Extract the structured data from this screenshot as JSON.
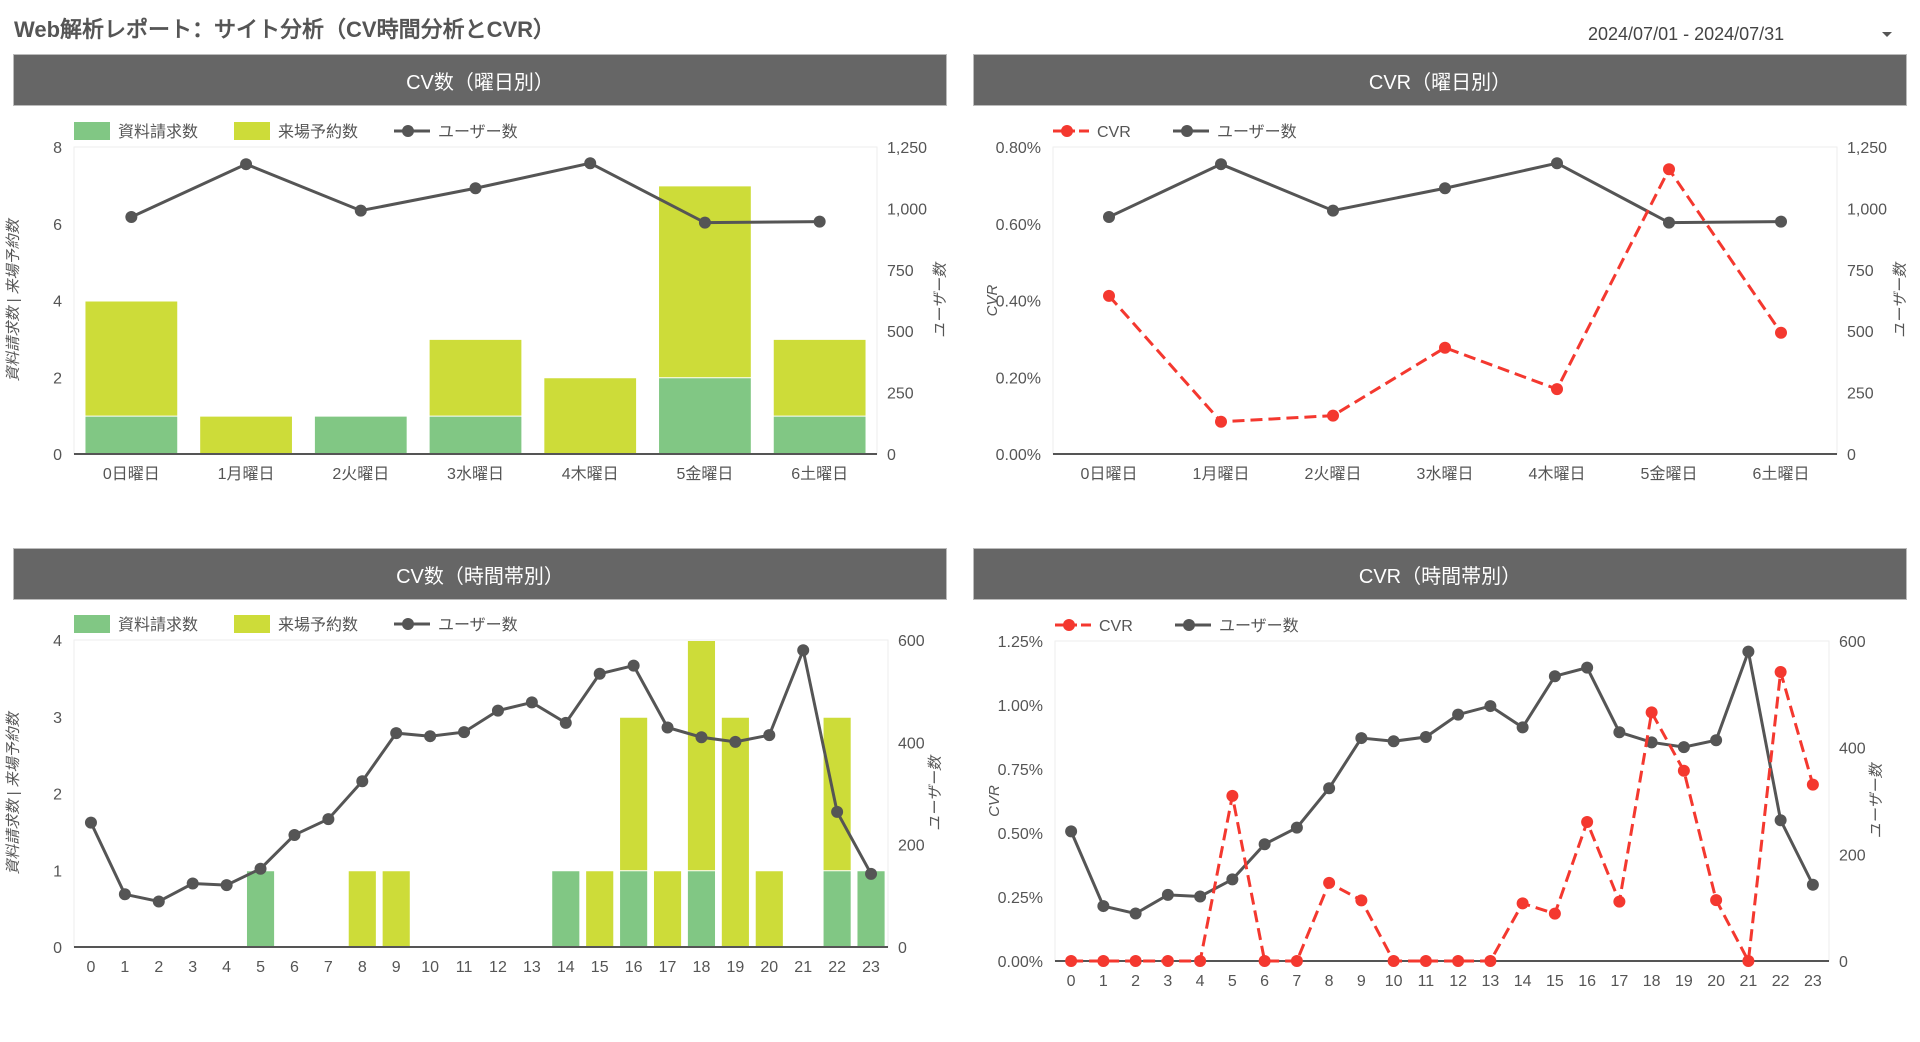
{
  "page": {
    "title": "Web解析レポート：サイト分析（CV時間分析とCVR）",
    "date_range": "2024/07/01 - 2024/07/31"
  },
  "panels": [
    {
      "id": "cv-weekday",
      "header": "CV数（曜日別）"
    },
    {
      "id": "cvr-weekday",
      "header": "CVR（曜日別）"
    },
    {
      "id": "cv-hour",
      "header": "CV数（時間帯別）"
    },
    {
      "id": "cvr-hour",
      "header": "CVR（時間帯別）"
    }
  ],
  "colors": {
    "shiryo": "#81c784",
    "raijo": "#cddc39",
    "users": "#555555",
    "cvr": "#f4382f",
    "header_bg": "#666666"
  },
  "chart_data": [
    {
      "id": "cv-weekday",
      "type": "bar",
      "stacked": true,
      "title": "CV数（曜日別）",
      "categories": [
        "0日曜日",
        "1月曜日",
        "2火曜日",
        "3水曜日",
        "4木曜日",
        "5金曜日",
        "6土曜日"
      ],
      "series": [
        {
          "name": "資料請求数",
          "type": "bar",
          "axis": "left",
          "values": [
            1,
            0,
            1,
            1,
            0,
            2,
            1
          ]
        },
        {
          "name": "来場予約数",
          "type": "bar",
          "axis": "left",
          "values": [
            3,
            1,
            0,
            2,
            2,
            5,
            2
          ]
        },
        {
          "name": "ユーザー数",
          "type": "line",
          "axis": "right",
          "values": [
            965,
            1180,
            991,
            1082,
            1184,
            942,
            946
          ]
        }
      ],
      "ylabel": "資料請求数 | 来場予約数",
      "y2label": "ユーザー数",
      "ylim": [
        0,
        8
      ],
      "yticks": [
        "0",
        "2",
        "4",
        "6",
        "8"
      ],
      "y2lim": [
        0,
        1250
      ],
      "y2ticks": [
        "0",
        "250",
        "500",
        "750",
        "1,000",
        "1,250"
      ],
      "legend": [
        "資料請求数",
        "来場予約数",
        "ユーザー数"
      ]
    },
    {
      "id": "cvr-weekday",
      "type": "line",
      "title": "CVR（曜日別）",
      "categories": [
        "0日曜日",
        "1月曜日",
        "2火曜日",
        "3水曜日",
        "4木曜日",
        "5金曜日",
        "6土曜日"
      ],
      "series": [
        {
          "name": "CVR",
          "type": "line",
          "dashed": true,
          "axis": "left",
          "values": [
            0.412,
            0.084,
            0.1,
            0.277,
            0.169,
            0.742,
            0.316
          ]
        },
        {
          "name": "ユーザー数",
          "type": "line",
          "axis": "right",
          "values": [
            965,
            1180,
            991,
            1082,
            1184,
            942,
            946
          ]
        }
      ],
      "ylabel": "CVR",
      "y2label": "ユーザー数",
      "ylim": [
        0,
        0.8
      ],
      "yticks": [
        "0.00%",
        "0.20%",
        "0.40%",
        "0.60%",
        "0.80%"
      ],
      "y2lim": [
        0,
        1250
      ],
      "y2ticks": [
        "0",
        "250",
        "500",
        "750",
        "1,000",
        "1,250"
      ],
      "legend": [
        "CVR",
        "ユーザー数"
      ]
    },
    {
      "id": "cv-hour",
      "type": "bar",
      "stacked": true,
      "title": "CV数（時間帯別）",
      "categories": [
        "0",
        "1",
        "2",
        "3",
        "4",
        "5",
        "6",
        "7",
        "8",
        "9",
        "10",
        "11",
        "12",
        "13",
        "14",
        "15",
        "16",
        "17",
        "18",
        "19",
        "20",
        "21",
        "22",
        "23"
      ],
      "series": [
        {
          "name": "資料請求数",
          "type": "bar",
          "axis": "left",
          "values": [
            0,
            0,
            0,
            0,
            0,
            1,
            0,
            0,
            0,
            0,
            0,
            0,
            0,
            0,
            1,
            0,
            1,
            0,
            1,
            0,
            0,
            0,
            1,
            1
          ]
        },
        {
          "name": "来場予約数",
          "type": "bar",
          "axis": "left",
          "values": [
            0,
            0,
            0,
            0,
            0,
            0,
            0,
            0,
            1,
            1,
            0,
            0,
            0,
            0,
            0,
            1,
            2,
            1,
            3,
            3,
            1,
            0,
            2,
            0
          ]
        },
        {
          "name": "ユーザー数",
          "type": "line",
          "axis": "right",
          "values": [
            243,
            103,
            89,
            124,
            121,
            153,
            219,
            250,
            324,
            418,
            412,
            420,
            462,
            478,
            438,
            534,
            550,
            429,
            410,
            401,
            414,
            580,
            264,
            143
          ]
        }
      ],
      "ylabel": "資料請求数 | 来場予約数",
      "y2label": "ユーザー数",
      "ylim": [
        0,
        4
      ],
      "yticks": [
        "0",
        "1",
        "2",
        "3",
        "4"
      ],
      "y2lim": [
        0,
        600
      ],
      "y2ticks": [
        "0",
        "200",
        "400",
        "600"
      ],
      "legend": [
        "資料請求数",
        "来場予約数",
        "ユーザー数"
      ]
    },
    {
      "id": "cvr-hour",
      "type": "line",
      "title": "CVR（時間帯別）",
      "categories": [
        "0",
        "1",
        "2",
        "3",
        "4",
        "5",
        "6",
        "7",
        "8",
        "9",
        "10",
        "11",
        "12",
        "13",
        "14",
        "15",
        "16",
        "17",
        "18",
        "19",
        "20",
        "21",
        "22",
        "23"
      ],
      "series": [
        {
          "name": "CVR",
          "type": "line",
          "dashed": true,
          "axis": "left",
          "values": [
            0,
            0,
            0,
            0,
            0,
            0.645,
            0,
            0,
            0.305,
            0.237,
            0,
            0,
            0,
            0,
            0.225,
            0.185,
            0.543,
            0.232,
            0.971,
            0.743,
            0.238,
            0,
            1.129,
            0.689
          ]
        },
        {
          "name": "ユーザー数",
          "type": "line",
          "axis": "right",
          "values": [
            243,
            103,
            89,
            124,
            121,
            153,
            219,
            250,
            324,
            418,
            412,
            420,
            462,
            478,
            438,
            534,
            550,
            429,
            410,
            401,
            414,
            580,
            264,
            143
          ]
        }
      ],
      "ylabel": "CVR",
      "y2label": "ユーザー数",
      "ylim": [
        0,
        1.25
      ],
      "yticks": [
        "0.00%",
        "0.25%",
        "0.50%",
        "0.75%",
        "1.00%",
        "1.25%"
      ],
      "y2lim": [
        0,
        600
      ],
      "y2ticks": [
        "0",
        "200",
        "400",
        "600"
      ],
      "legend": [
        "CVR",
        "ユーザー数"
      ]
    }
  ]
}
